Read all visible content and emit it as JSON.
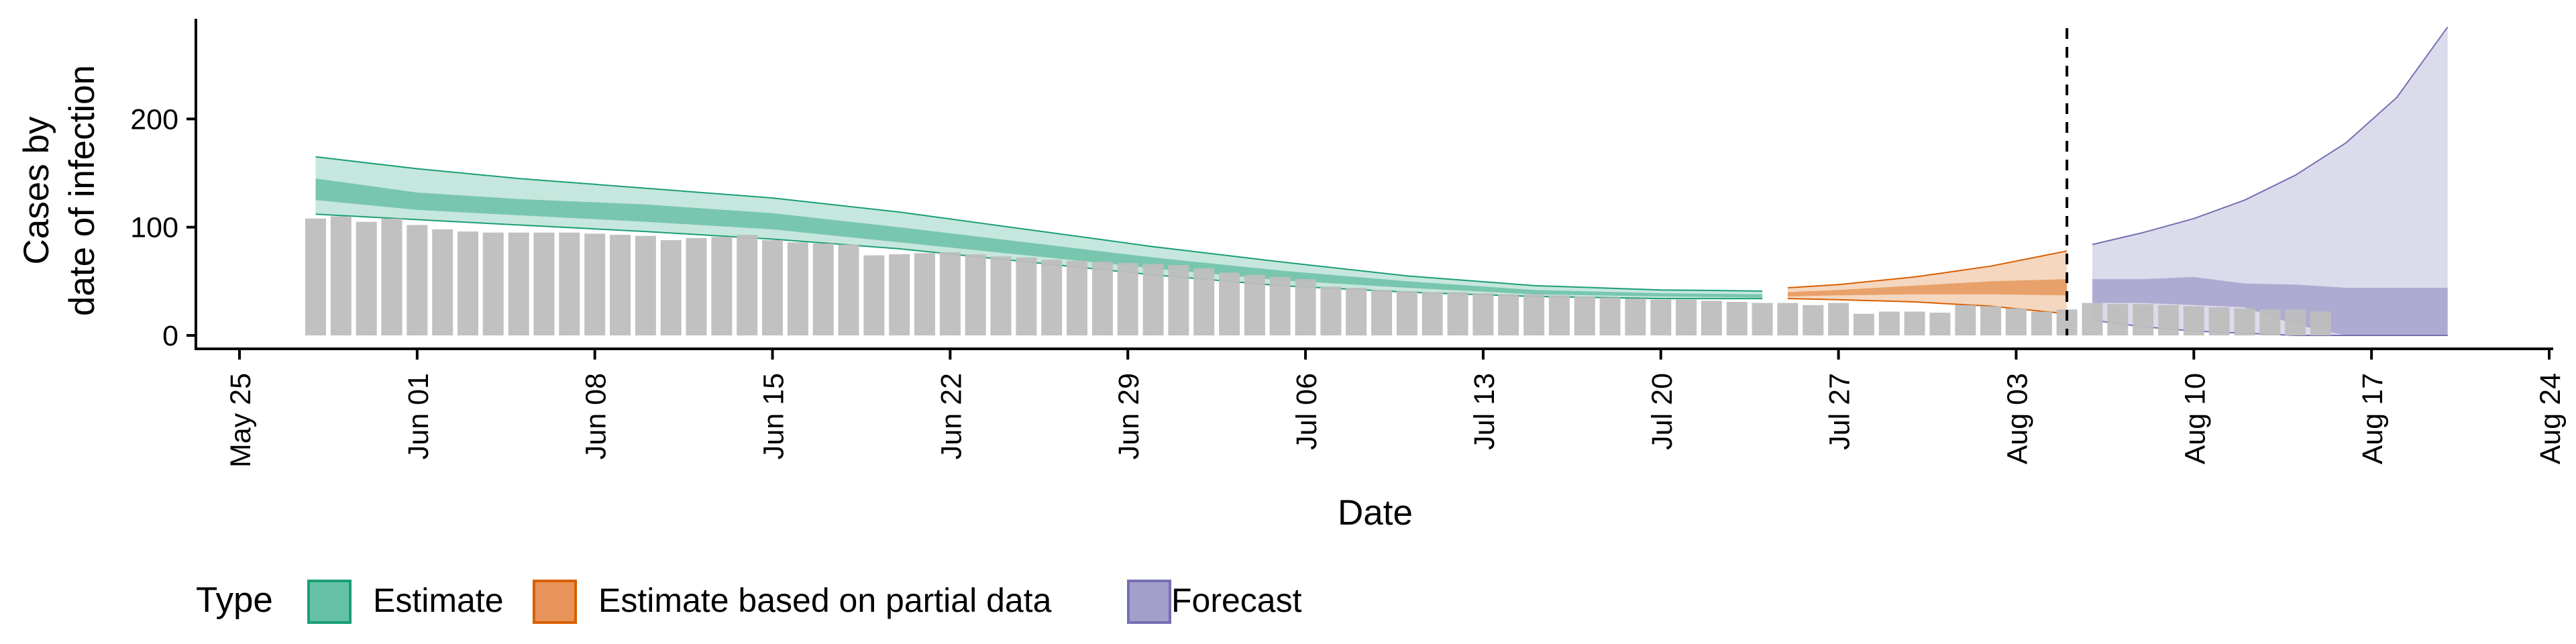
{
  "chart_data": {
    "type": "bar",
    "xlabel": "Date",
    "ylabel_lines": [
      "Cases by",
      "date of infection"
    ],
    "xlim": [
      "2020-05-25",
      "2020-08-24"
    ],
    "ylim": [
      0,
      300
    ],
    "yticks": [
      0,
      100,
      200
    ],
    "xticks": [
      {
        "date": "2020-05-25",
        "label": "May 25"
      },
      {
        "date": "2020-06-01",
        "label": "Jun 01"
      },
      {
        "date": "2020-06-08",
        "label": "Jun 08"
      },
      {
        "date": "2020-06-15",
        "label": "Jun 15"
      },
      {
        "date": "2020-06-22",
        "label": "Jun 22"
      },
      {
        "date": "2020-06-29",
        "label": "Jun 29"
      },
      {
        "date": "2020-07-06",
        "label": "Jul 06"
      },
      {
        "date": "2020-07-13",
        "label": "Jul 13"
      },
      {
        "date": "2020-07-20",
        "label": "Jul 20"
      },
      {
        "date": "2020-07-27",
        "label": "Jul 27"
      },
      {
        "date": "2020-08-03",
        "label": "Aug 03"
      },
      {
        "date": "2020-08-10",
        "label": "Aug 10"
      },
      {
        "date": "2020-08-17",
        "label": "Aug 17"
      },
      {
        "date": "2020-08-24",
        "label": "Aug 24"
      }
    ],
    "grid": false,
    "legend": {
      "title": "Type",
      "position": "bottom",
      "entries": [
        {
          "label": "Estimate",
          "fill": "#66c2a5",
          "stroke": "#1b9e77"
        },
        {
          "label": "Estimate based on partial data",
          "fill": "#e8935a",
          "stroke": "#d95f02"
        },
        {
          "label": "Forecast",
          "fill": "#a39fcb",
          "stroke": "#7570b3"
        }
      ]
    },
    "colors": {
      "bars": "#bebebe",
      "estimate": "#1b9e77",
      "partial": "#d95f02",
      "forecast": "#7570b3"
    },
    "reference_line": {
      "date": "2020-08-05",
      "style": "dashed"
    },
    "observed_cases": {
      "start_date": "2020-05-28",
      "values": [
        108,
        110,
        105,
        108,
        102,
        98,
        96,
        95,
        95,
        95,
        95,
        94,
        93,
        92,
        88,
        90,
        91,
        93,
        88,
        86,
        85,
        84,
        74,
        75,
        76,
        77,
        75,
        73,
        72,
        70,
        69,
        68,
        67,
        66,
        65,
        62,
        58,
        56,
        54,
        52,
        45,
        44,
        42,
        41,
        40,
        40,
        39,
        38,
        38,
        37,
        36,
        35,
        34,
        33,
        33,
        32,
        31,
        30,
        30,
        28,
        30,
        20,
        22,
        22,
        21,
        28,
        27,
        25,
        22,
        24,
        30,
        29,
        29,
        28,
        27,
        26,
        25,
        24,
        24,
        22
      ]
    },
    "series": [
      {
        "name": "Estimate",
        "dates": [
          "2020-05-28",
          "2020-06-01",
          "2020-06-05",
          "2020-06-10",
          "2020-06-15",
          "2020-06-20",
          "2020-06-25",
          "2020-06-30",
          "2020-07-05",
          "2020-07-10",
          "2020-07-15",
          "2020-07-20",
          "2020-07-24"
        ],
        "outer_lower": [
          112,
          107,
          102,
          96,
          89,
          80,
          68,
          56,
          46,
          40,
          36,
          34,
          34
        ],
        "inner_lower": [
          125,
          116,
          111,
          105,
          98,
          86,
          74,
          62,
          51,
          44,
          38,
          36,
          35
        ],
        "inner_upper": [
          145,
          132,
          126,
          121,
          113,
          100,
          86,
          72,
          60,
          50,
          42,
          39,
          38
        ],
        "outer_upper": [
          165,
          154,
          145,
          136,
          127,
          114,
          98,
          82,
          68,
          55,
          46,
          42,
          41
        ]
      },
      {
        "name": "Estimate based on partial data",
        "dates": [
          "2020-07-25",
          "2020-07-27",
          "2020-07-30",
          "2020-08-02",
          "2020-08-05"
        ],
        "outer_lower": [
          34,
          33,
          31,
          27,
          20
        ],
        "inner_lower": [
          36,
          37,
          38,
          38,
          37
        ],
        "inner_upper": [
          40,
          42,
          46,
          50,
          52
        ],
        "outer_upper": [
          44,
          47,
          54,
          64,
          78
        ]
      },
      {
        "name": "Forecast",
        "dates": [
          "2020-08-06",
          "2020-08-08",
          "2020-08-10",
          "2020-08-12",
          "2020-08-14",
          "2020-08-16",
          "2020-08-18",
          "2020-08-20"
        ],
        "outer_lower": [
          14,
          8,
          4,
          2,
          0,
          0,
          0,
          0
        ],
        "inner_lower": [
          30,
          30,
          28,
          26,
          10,
          0,
          0,
          0
        ],
        "inner_upper": [
          52,
          52,
          54,
          48,
          47,
          44,
          44,
          44
        ],
        "outer_upper": [
          84,
          95,
          108,
          125,
          148,
          178,
          220,
          285
        ]
      }
    ]
  }
}
